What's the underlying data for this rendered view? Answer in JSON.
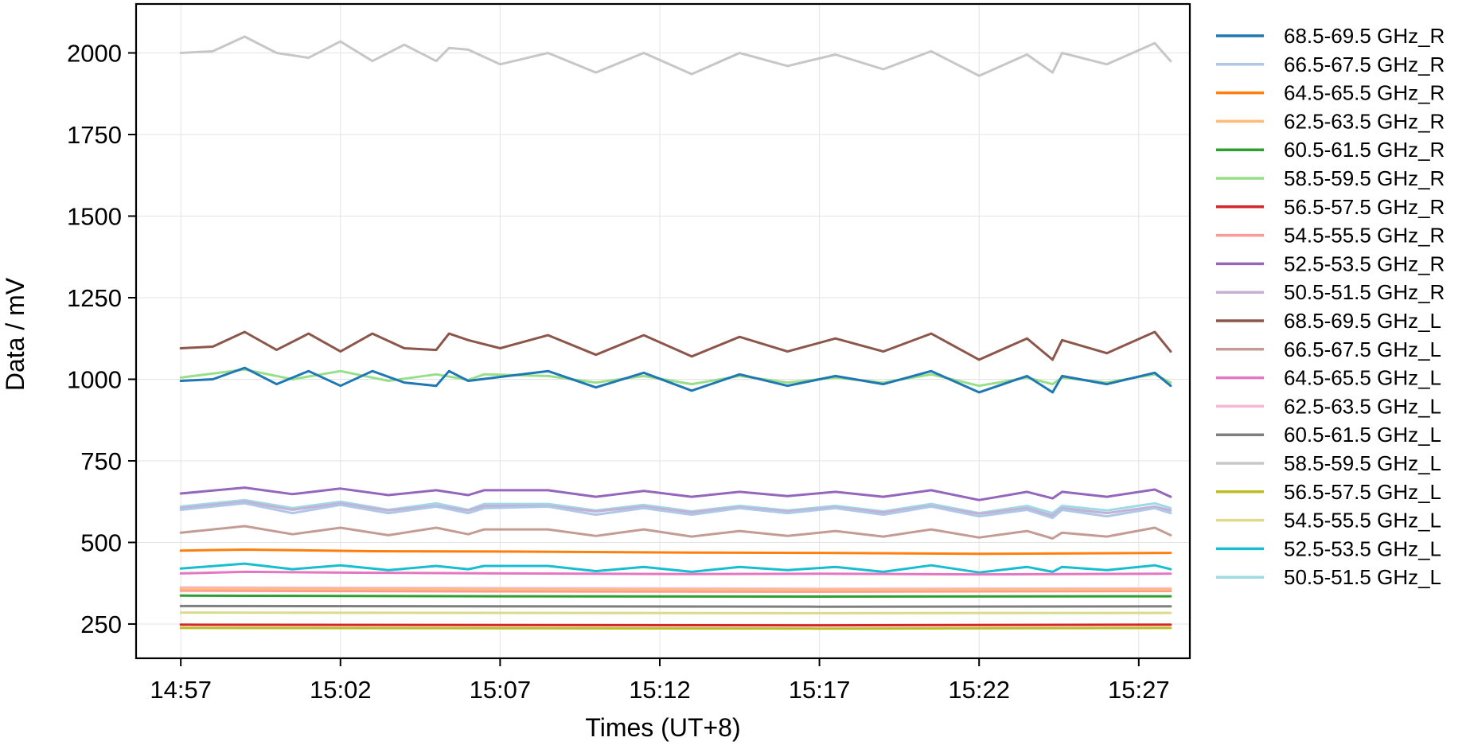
{
  "chart_data": {
    "type": "line",
    "title": "",
    "xlabel": "Times (UT+8)",
    "ylabel": "Data / mV",
    "x_ticks": [
      "14:57",
      "15:02",
      "15:07",
      "15:12",
      "15:17",
      "15:22",
      "15:27"
    ],
    "x_range": [
      "14:55:36",
      "15:28:36"
    ],
    "y_ticks": [
      250,
      500,
      750,
      1000,
      1250,
      1500,
      1750,
      2000
    ],
    "ylim": [
      145,
      2150
    ],
    "grid": true,
    "legend_position": "outside-right",
    "series": [
      {
        "name": "68.5-69.5 GHz_R",
        "color": "#1f77b4",
        "values": [
          [
            0,
            995
          ],
          [
            1,
            1000
          ],
          [
            2,
            1035
          ],
          [
            3,
            985
          ],
          [
            4,
            1025
          ],
          [
            5,
            980
          ],
          [
            6,
            1025
          ],
          [
            7,
            990
          ],
          [
            8,
            980
          ],
          [
            8.4,
            1025
          ],
          [
            9,
            995
          ],
          [
            11.5,
            1025
          ],
          [
            13,
            975
          ],
          [
            14.5,
            1020
          ],
          [
            16,
            965
          ],
          [
            17.5,
            1015
          ],
          [
            19,
            980
          ],
          [
            20.5,
            1010
          ],
          [
            22,
            985
          ],
          [
            23.5,
            1025
          ],
          [
            25,
            960
          ],
          [
            26.5,
            1010
          ],
          [
            27.3,
            960
          ],
          [
            27.6,
            1010
          ],
          [
            29,
            985
          ],
          [
            30.5,
            1020
          ],
          [
            31,
            980
          ]
        ]
      },
      {
        "name": "66.5-67.5 GHz_R",
        "color": "#aec7e8",
        "values": [
          [
            0,
            600
          ],
          [
            2,
            620
          ],
          [
            3.5,
            590
          ],
          [
            5,
            615
          ],
          [
            6.5,
            590
          ],
          [
            8,
            610
          ],
          [
            9,
            590
          ],
          [
            9.5,
            605
          ],
          [
            11.5,
            610
          ],
          [
            13,
            585
          ],
          [
            14.5,
            605
          ],
          [
            16,
            585
          ],
          [
            17.5,
            605
          ],
          [
            19,
            590
          ],
          [
            20.5,
            605
          ],
          [
            22,
            585
          ],
          [
            23.5,
            610
          ],
          [
            25,
            580
          ],
          [
            26.5,
            600
          ],
          [
            27.3,
            575
          ],
          [
            27.6,
            600
          ],
          [
            29,
            580
          ],
          [
            30.5,
            605
          ],
          [
            31,
            590
          ]
        ]
      },
      {
        "name": "64.5-65.5 GHz_R",
        "color": "#ff7f0e",
        "values": [
          [
            0,
            475
          ],
          [
            2,
            478
          ],
          [
            6,
            473
          ],
          [
            10,
            472
          ],
          [
            16,
            469
          ],
          [
            20,
            468
          ],
          [
            25,
            465
          ],
          [
            31,
            468
          ]
        ]
      },
      {
        "name": "62.5-63.5 GHz_R",
        "color": "#ffbb78",
        "values": [
          [
            0,
            358
          ],
          [
            10,
            356
          ],
          [
            20,
            354
          ],
          [
            31,
            356
          ]
        ]
      },
      {
        "name": "60.5-61.5 GHz_R",
        "color": "#2ca02c",
        "values": [
          [
            0,
            337
          ],
          [
            10,
            335
          ],
          [
            20,
            334
          ],
          [
            31,
            335
          ]
        ]
      },
      {
        "name": "58.5-59.5 GHz_R",
        "color": "#98df8a",
        "values": [
          [
            0,
            1005
          ],
          [
            2,
            1030
          ],
          [
            3.5,
            1000
          ],
          [
            5,
            1025
          ],
          [
            6.5,
            995
          ],
          [
            8,
            1015
          ],
          [
            9,
            998
          ],
          [
            9.5,
            1015
          ],
          [
            11.5,
            1010
          ],
          [
            13,
            990
          ],
          [
            14.5,
            1010
          ],
          [
            16,
            985
          ],
          [
            17.5,
            1010
          ],
          [
            19,
            990
          ],
          [
            20.5,
            1005
          ],
          [
            22,
            990
          ],
          [
            23.5,
            1015
          ],
          [
            25,
            980
          ],
          [
            26.5,
            1005
          ],
          [
            27.3,
            985
          ],
          [
            27.6,
            1005
          ],
          [
            29,
            990
          ],
          [
            30.5,
            1015
          ],
          [
            31,
            990
          ]
        ]
      },
      {
        "name": "56.5-57.5 GHz_R",
        "color": "#d62728",
        "values": [
          [
            0,
            248
          ],
          [
            10,
            247
          ],
          [
            20,
            246
          ],
          [
            31,
            248
          ]
        ]
      },
      {
        "name": "54.5-55.5 GHz_R",
        "color": "#ff9896",
        "values": [
          [
            0,
            352
          ],
          [
            10,
            350
          ],
          [
            20,
            349
          ],
          [
            31,
            351
          ]
        ]
      },
      {
        "name": "52.5-53.5 GHz_R",
        "color": "#9467bd",
        "values": [
          [
            0,
            650
          ],
          [
            2,
            668
          ],
          [
            3.5,
            648
          ],
          [
            5,
            665
          ],
          [
            6.5,
            645
          ],
          [
            8,
            660
          ],
          [
            9,
            645
          ],
          [
            9.5,
            660
          ],
          [
            11.5,
            660
          ],
          [
            13,
            640
          ],
          [
            14.5,
            658
          ],
          [
            16,
            640
          ],
          [
            17.5,
            655
          ],
          [
            19,
            642
          ],
          [
            20.5,
            655
          ],
          [
            22,
            640
          ],
          [
            23.5,
            660
          ],
          [
            25,
            630
          ],
          [
            26.5,
            655
          ],
          [
            27.3,
            635
          ],
          [
            27.6,
            655
          ],
          [
            29,
            640
          ],
          [
            30.5,
            662
          ],
          [
            31,
            640
          ]
        ]
      },
      {
        "name": "50.5-51.5 GHz_R",
        "color": "#c5b0d5",
        "values": [
          [
            0,
            605
          ],
          [
            2,
            625
          ],
          [
            3.5,
            600
          ],
          [
            5,
            620
          ],
          [
            6.5,
            598
          ],
          [
            8,
            612
          ],
          [
            9,
            598
          ],
          [
            9.5,
            612
          ],
          [
            11.5,
            612
          ],
          [
            13,
            595
          ],
          [
            14.5,
            610
          ],
          [
            16,
            592
          ],
          [
            17.5,
            608
          ],
          [
            19,
            595
          ],
          [
            20.5,
            608
          ],
          [
            22,
            592
          ],
          [
            23.5,
            612
          ],
          [
            25,
            588
          ],
          [
            26.5,
            605
          ],
          [
            27.3,
            582
          ],
          [
            27.6,
            605
          ],
          [
            29,
            590
          ],
          [
            30.5,
            610
          ],
          [
            31,
            598
          ]
        ]
      },
      {
        "name": "68.5-69.5 GHz_L",
        "color": "#8c564b",
        "values": [
          [
            0,
            1095
          ],
          [
            1,
            1100
          ],
          [
            2,
            1145
          ],
          [
            3,
            1090
          ],
          [
            4,
            1140
          ],
          [
            5,
            1085
          ],
          [
            6,
            1140
          ],
          [
            7,
            1095
          ],
          [
            8,
            1090
          ],
          [
            8.4,
            1140
          ],
          [
            9,
            1120
          ],
          [
            10,
            1095
          ],
          [
            11.5,
            1135
          ],
          [
            13,
            1075
          ],
          [
            14.5,
            1135
          ],
          [
            16,
            1070
          ],
          [
            17.5,
            1130
          ],
          [
            19,
            1085
          ],
          [
            20.5,
            1125
          ],
          [
            22,
            1085
          ],
          [
            23.5,
            1140
          ],
          [
            25,
            1060
          ],
          [
            26.5,
            1125
          ],
          [
            27.3,
            1060
          ],
          [
            27.6,
            1120
          ],
          [
            29,
            1080
          ],
          [
            30.5,
            1145
          ],
          [
            31,
            1085
          ]
        ]
      },
      {
        "name": "66.5-67.5 GHz_L",
        "color": "#c49c94",
        "values": [
          [
            0,
            530
          ],
          [
            2,
            550
          ],
          [
            3.5,
            525
          ],
          [
            5,
            545
          ],
          [
            6.5,
            522
          ],
          [
            8,
            545
          ],
          [
            9,
            525
          ],
          [
            9.5,
            540
          ],
          [
            11.5,
            540
          ],
          [
            13,
            520
          ],
          [
            14.5,
            540
          ],
          [
            16,
            518
          ],
          [
            17.5,
            535
          ],
          [
            19,
            520
          ],
          [
            20.5,
            535
          ],
          [
            22,
            518
          ],
          [
            23.5,
            540
          ],
          [
            25,
            515
          ],
          [
            26.5,
            535
          ],
          [
            27.3,
            512
          ],
          [
            27.6,
            530
          ],
          [
            29,
            518
          ],
          [
            30.5,
            545
          ],
          [
            31,
            522
          ]
        ]
      },
      {
        "name": "64.5-65.5 GHz_L",
        "color": "#e377c2",
        "values": [
          [
            0,
            405
          ],
          [
            2,
            410
          ],
          [
            6,
            407
          ],
          [
            10,
            405
          ],
          [
            16,
            403
          ],
          [
            20,
            404
          ],
          [
            25,
            402
          ],
          [
            31,
            404
          ]
        ]
      },
      {
        "name": "62.5-63.5 GHz_L",
        "color": "#f7b6d2",
        "values": [
          [
            0,
            362
          ],
          [
            10,
            360
          ],
          [
            20,
            358
          ],
          [
            31,
            359
          ]
        ]
      },
      {
        "name": "60.5-61.5 GHz_L",
        "color": "#7f7f7f",
        "values": [
          [
            0,
            305
          ],
          [
            10,
            304
          ],
          [
            20,
            303
          ],
          [
            31,
            304
          ]
        ]
      },
      {
        "name": "58.5-59.5 GHz_L",
        "color": "#c7c7c7",
        "values": [
          [
            0,
            2000
          ],
          [
            1,
            2005
          ],
          [
            2,
            2050
          ],
          [
            3,
            2000
          ],
          [
            4,
            1985
          ],
          [
            5,
            2035
          ],
          [
            6,
            1975
          ],
          [
            7,
            2025
          ],
          [
            8,
            1975
          ],
          [
            8.4,
            2015
          ],
          [
            9,
            2010
          ],
          [
            10,
            1965
          ],
          [
            11.5,
            2000
          ],
          [
            13,
            1940
          ],
          [
            14.5,
            2000
          ],
          [
            16,
            1935
          ],
          [
            17.5,
            2000
          ],
          [
            19,
            1960
          ],
          [
            20.5,
            1995
          ],
          [
            22,
            1950
          ],
          [
            23.5,
            2005
          ],
          [
            25,
            1930
          ],
          [
            26.5,
            1995
          ],
          [
            27.3,
            1940
          ],
          [
            27.6,
            2000
          ],
          [
            29,
            1965
          ],
          [
            30.5,
            2030
          ],
          [
            31,
            1975
          ]
        ]
      },
      {
        "name": "56.5-57.5 GHz_L",
        "color": "#bcbd22",
        "values": [
          [
            0,
            238
          ],
          [
            10,
            237
          ],
          [
            20,
            236
          ],
          [
            31,
            238
          ]
        ]
      },
      {
        "name": "54.5-55.5 GHz_L",
        "color": "#dbdb8d",
        "values": [
          [
            0,
            285
          ],
          [
            10,
            284
          ],
          [
            20,
            283
          ],
          [
            31,
            284
          ]
        ]
      },
      {
        "name": "52.5-53.5 GHz_L",
        "color": "#17becf",
        "values": [
          [
            0,
            420
          ],
          [
            2,
            435
          ],
          [
            3.5,
            418
          ],
          [
            5,
            430
          ],
          [
            6.5,
            415
          ],
          [
            8,
            428
          ],
          [
            9,
            418
          ],
          [
            9.5,
            428
          ],
          [
            11.5,
            428
          ],
          [
            13,
            412
          ],
          [
            14.5,
            425
          ],
          [
            16,
            410
          ],
          [
            17.5,
            425
          ],
          [
            19,
            415
          ],
          [
            20.5,
            425
          ],
          [
            22,
            410
          ],
          [
            23.5,
            430
          ],
          [
            25,
            408
          ],
          [
            26.5,
            425
          ],
          [
            27.3,
            410
          ],
          [
            27.6,
            425
          ],
          [
            29,
            415
          ],
          [
            30.5,
            430
          ],
          [
            31,
            418
          ]
        ]
      },
      {
        "name": "50.5-51.5 GHz_L",
        "color": "#9edae5",
        "values": [
          [
            0,
            610
          ],
          [
            2,
            630
          ],
          [
            3.5,
            605
          ],
          [
            5,
            625
          ],
          [
            6.5,
            600
          ],
          [
            8,
            620
          ],
          [
            9,
            600
          ],
          [
            9.5,
            618
          ],
          [
            11.5,
            618
          ],
          [
            13,
            598
          ],
          [
            14.5,
            615
          ],
          [
            16,
            595
          ],
          [
            17.5,
            612
          ],
          [
            19,
            598
          ],
          [
            20.5,
            612
          ],
          [
            22,
            595
          ],
          [
            23.5,
            618
          ],
          [
            25,
            590
          ],
          [
            26.5,
            612
          ],
          [
            27.3,
            590
          ],
          [
            27.6,
            612
          ],
          [
            29,
            598
          ],
          [
            30.5,
            620
          ],
          [
            31,
            605
          ]
        ]
      }
    ]
  }
}
